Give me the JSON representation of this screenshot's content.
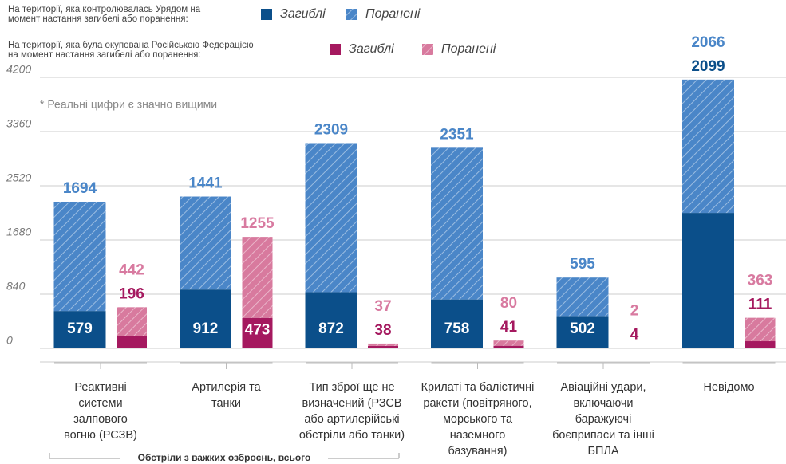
{
  "chart_data": {
    "type": "grouped_stacked_bar",
    "annotation": "* Реальні цифри є значно вищими",
    "bracket_label": "Обстріли з важких озброєнь, всього",
    "categories": [
      "Реактивні\nсистеми\nзалпового\nвогню (РСЗВ)",
      "Артилерія та\nтанки",
      "Тип зброї ще не\nвизначений (РЗСВ\nабо артилерійські\nобстріли або танки)",
      "Крилаті та балістичні\nракети (повітряного,\nморського та\nназемного\nбазування)",
      "Авіаційні удари,\nвключаючи\nбаражуючі\nбоєприпаси та інші\nБПЛА",
      "Невідомо"
    ],
    "ylim": [
      0,
      4200
    ],
    "yticks": [
      0,
      840,
      1680,
      2520,
      3360,
      4200
    ],
    "grid": true,
    "groups": [
      {
        "label": "На території, яка контролювалась Урядом на\nмомент настання загибелі або поранення:",
        "series": [
          {
            "name": "Загиблі",
            "color": "#0b4f8a",
            "values": [
              579,
              912,
              872,
              758,
              502,
              2099
            ]
          },
          {
            "name": "Поранені",
            "color": "#4a86c8",
            "hatch": true,
            "values": [
              1694,
              1441,
              2309,
              2351,
              595,
              2066
            ]
          }
        ]
      },
      {
        "label": "На території, яка була окупована Російською Федерацією\nна момент настання загибелі або поранення:",
        "series": [
          {
            "name": "Загиблі",
            "color": "#a5195f",
            "values": [
              196,
              473,
              38,
              41,
              4,
              111
            ]
          },
          {
            "name": "Поранені",
            "color": "#d87a9e",
            "hatch": true,
            "values": [
              442,
              1255,
              37,
              80,
              2,
              363
            ]
          }
        ]
      }
    ]
  }
}
